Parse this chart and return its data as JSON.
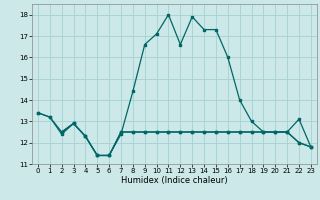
{
  "title": "",
  "xlabel": "Humidex (Indice chaleur)",
  "background_color": "#cce8e8",
  "grid_color": "#aad4d4",
  "line_color": "#006666",
  "xlim": [
    -0.5,
    23.5
  ],
  "ylim": [
    11,
    18.5
  ],
  "yticks": [
    11,
    12,
    13,
    14,
    15,
    16,
    17,
    18
  ],
  "xticks": [
    0,
    1,
    2,
    3,
    4,
    5,
    6,
    7,
    8,
    9,
    10,
    11,
    12,
    13,
    14,
    15,
    16,
    17,
    18,
    19,
    20,
    21,
    22,
    23
  ],
  "line1_x": [
    0,
    1,
    2,
    3,
    4,
    5,
    6,
    7,
    8,
    9,
    10,
    11,
    12,
    13,
    14,
    15,
    16,
    17,
    18,
    19,
    20,
    21,
    22,
    23
  ],
  "line1_y": [
    13.4,
    13.2,
    12.4,
    12.9,
    12.3,
    11.4,
    11.4,
    12.4,
    14.4,
    16.6,
    17.1,
    18.0,
    16.6,
    17.9,
    17.3,
    17.3,
    16.0,
    14.0,
    13.0,
    12.5,
    12.5,
    12.5,
    13.1,
    11.8
  ],
  "line2_x": [
    0,
    1,
    2,
    3,
    4,
    5,
    6,
    7,
    8,
    9,
    10,
    11,
    12,
    13,
    14,
    15,
    16,
    17,
    18,
    19,
    20,
    21,
    22,
    23
  ],
  "line2_y": [
    13.4,
    13.2,
    12.5,
    12.9,
    12.3,
    11.4,
    11.4,
    12.5,
    12.5,
    12.5,
    12.5,
    12.5,
    12.5,
    12.5,
    12.5,
    12.5,
    12.5,
    12.5,
    12.5,
    12.5,
    12.5,
    12.5,
    12.0,
    11.8
  ],
  "line3_x": [
    2,
    3,
    4,
    5,
    6,
    7,
    8,
    9,
    10,
    11,
    12,
    13,
    14,
    15,
    16,
    17,
    18,
    19,
    20,
    21,
    22,
    23
  ],
  "line3_y": [
    12.5,
    12.9,
    12.3,
    11.4,
    11.4,
    12.5,
    12.5,
    12.5,
    12.5,
    12.5,
    12.5,
    12.5,
    12.5,
    12.5,
    12.5,
    12.5,
    12.5,
    12.5,
    12.5,
    12.5,
    12.0,
    11.8
  ]
}
